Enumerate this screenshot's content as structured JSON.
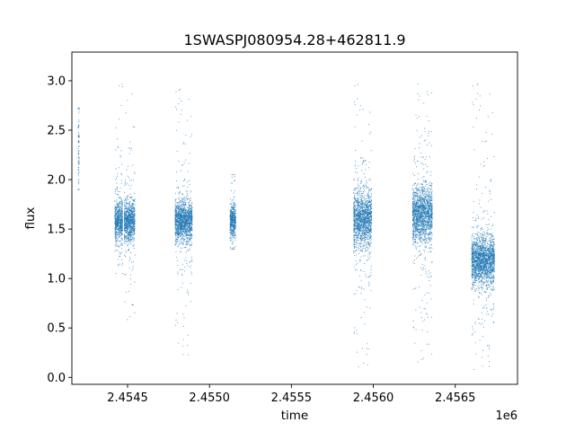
{
  "chart_data": {
    "type": "scatter",
    "title": "1SWASPJ080954.28+462811.9",
    "xlabel": "time",
    "ylabel": "flux",
    "x_offset_label": "1e6",
    "xlim": [
      2454160,
      2456880
    ],
    "ylim": [
      -0.07,
      3.29
    ],
    "x_ticks": [
      2454500,
      2455000,
      2455500,
      2456000,
      2456500
    ],
    "x_tick_labels": [
      "2.4545",
      "2.4550",
      "2.4555",
      "2.4560",
      "2.4565"
    ],
    "y_ticks": [
      0.0,
      0.5,
      1.0,
      1.5,
      2.0,
      2.5,
      3.0
    ],
    "y_tick_labels": [
      "0.0",
      "0.5",
      "1.0",
      "1.5",
      "2.0",
      "2.5",
      "3.0"
    ],
    "grid": false,
    "marker_color": "#1f77b4",
    "observing_seasons": [
      {
        "x_start": 2454198,
        "x_end": 2454205,
        "flux_center": 2.35,
        "flux_spread": 0.35,
        "flux_min": 1.9,
        "flux_max": 2.72
      },
      {
        "x_start": 2454422,
        "x_end": 2454470,
        "flux_center": 1.58,
        "flux_spread": 0.1,
        "flux_min": 1.05,
        "flux_max": 3.1
      },
      {
        "x_start": 2454480,
        "x_end": 2454545,
        "flux_center": 1.58,
        "flux_spread": 0.1,
        "flux_min": 0.58,
        "flux_max": 3.08
      },
      {
        "x_start": 2454790,
        "x_end": 2454895,
        "flux_center": 1.58,
        "flux_spread": 0.1,
        "flux_min": 0.2,
        "flux_max": 3.08
      },
      {
        "x_start": 2455125,
        "x_end": 2455160,
        "flux_center": 1.58,
        "flux_spread": 0.08,
        "flux_min": 1.3,
        "flux_max": 2.05
      },
      {
        "x_start": 2455880,
        "x_end": 2455990,
        "flux_center": 1.6,
        "flux_spread": 0.14,
        "flux_min": 0.1,
        "flux_max": 3.15
      },
      {
        "x_start": 2456240,
        "x_end": 2456360,
        "flux_center": 1.65,
        "flux_spread": 0.14,
        "flux_min": 0.15,
        "flux_max": 3.14
      },
      {
        "x_start": 2456600,
        "x_end": 2456740,
        "flux_center": 1.18,
        "flux_spread": 0.12,
        "flux_min": 0.08,
        "flux_max": 3.15
      }
    ]
  }
}
